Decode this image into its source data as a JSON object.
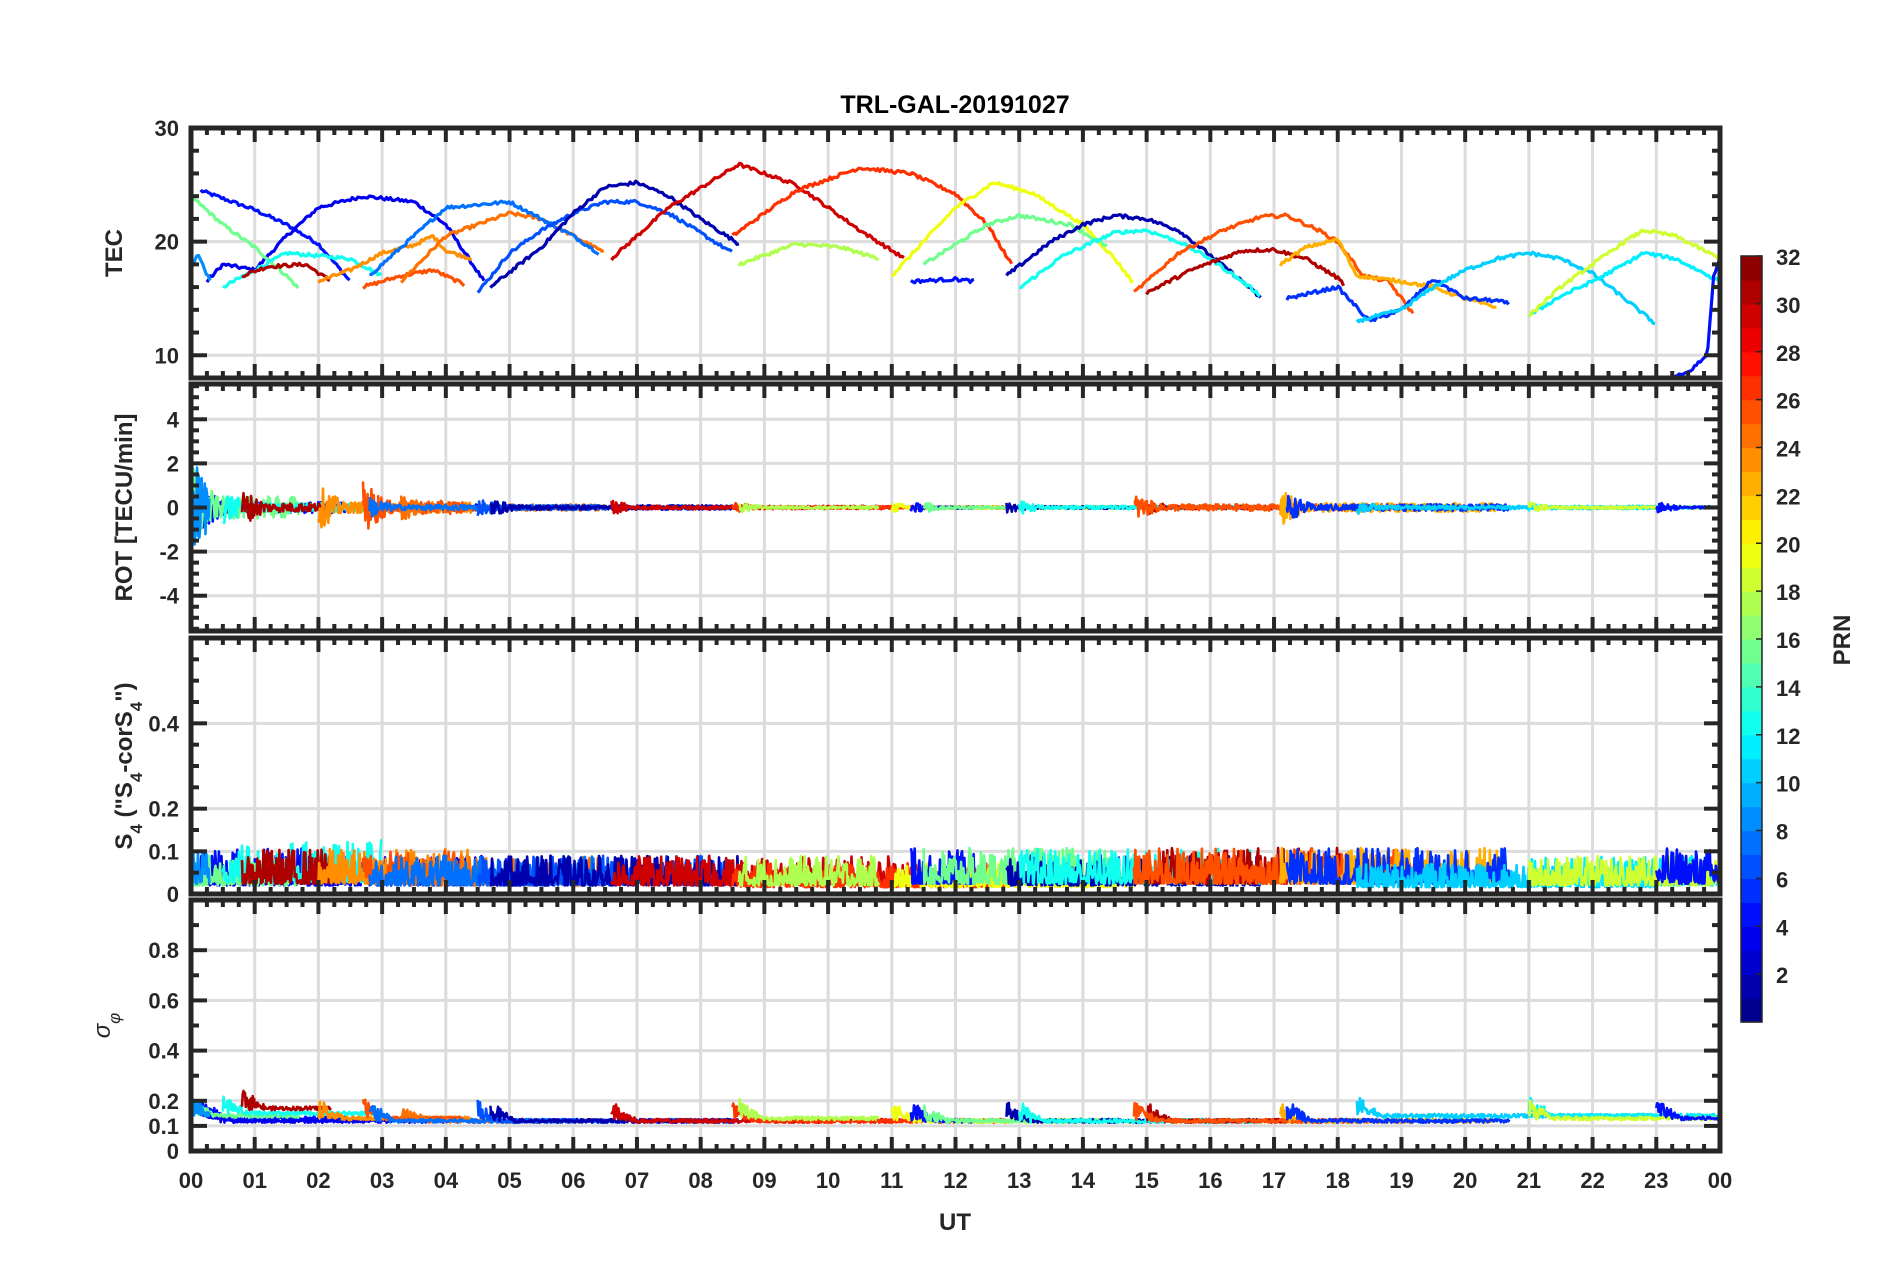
{
  "chart_data": {
    "type": "line",
    "title": "TRL-GAL-20191027",
    "xlabel": "UT",
    "xlim": [
      0,
      24
    ],
    "x_ticks": [
      0,
      1,
      2,
      3,
      4,
      5,
      6,
      7,
      8,
      9,
      10,
      11,
      12,
      13,
      14,
      15,
      16,
      17,
      18,
      19,
      20,
      21,
      22,
      23,
      24
    ],
    "x_tick_labels": [
      "00",
      "01",
      "02",
      "03",
      "04",
      "05",
      "06",
      "07",
      "08",
      "09",
      "10",
      "11",
      "12",
      "13",
      "14",
      "15",
      "16",
      "17",
      "18",
      "19",
      "20",
      "21",
      "22",
      "23",
      "00"
    ],
    "grid": true,
    "colormap": "jet",
    "colorbar": {
      "label": "PRN",
      "range": [
        1,
        32
      ],
      "levels": 32,
      "ticks": [
        2,
        4,
        6,
        8,
        10,
        12,
        14,
        16,
        18,
        20,
        22,
        24,
        26,
        28,
        30,
        32
      ],
      "placement": "right"
    },
    "panels": [
      {
        "id": "tec",
        "ylabel": "TEC",
        "ylim": [
          8,
          30
        ],
        "y_ticks": [
          10,
          20,
          30
        ],
        "y_tick_labels": [
          "10",
          "20",
          "30"
        ]
      },
      {
        "id": "rot",
        "ylabel": "ROT [TECU/min]",
        "ylim": [
          -5.6,
          5.6
        ],
        "y_ticks": [
          -4,
          -2,
          0,
          2,
          4
        ],
        "y_tick_labels": [
          "-4",
          "-2",
          "0",
          "2",
          "4"
        ]
      },
      {
        "id": "s4",
        "ylabel_parts": [
          "S",
          "4",
          " (\"S",
          "4",
          "-corS",
          "4",
          "\")"
        ],
        "ylim": [
          0,
          0.6
        ],
        "y_ticks": [
          0,
          0.1,
          0.2,
          0.4
        ],
        "y_tick_labels": [
          "0",
          "0.1",
          "0.2",
          "0.4"
        ]
      },
      {
        "id": "sigma",
        "ylabel_parts": [
          "σ",
          "φ"
        ],
        "ylim": [
          0,
          1
        ],
        "y_ticks": [
          0,
          0.1,
          0.2,
          0.4,
          0.6,
          0.8
        ],
        "y_tick_labels": [
          "0",
          "0.1",
          "0.2",
          "0.4",
          "0.6",
          "0.8"
        ]
      }
    ],
    "series": [
      {
        "prn": 5,
        "tec": [
          [
            0.15,
            24.5
          ],
          [
            0.5,
            23.8
          ],
          [
            1.0,
            22.8
          ],
          [
            1.5,
            21.5
          ],
          [
            2.0,
            19.8
          ],
          [
            2.5,
            16.5
          ]
        ],
        "rot_amp": 0.25,
        "s4_level": 0.06,
        "sigma_level": 0.13
      },
      {
        "prn": 4,
        "tec": [
          [
            0.25,
            16.5
          ],
          [
            0.5,
            18
          ],
          [
            1.0,
            17.5
          ],
          [
            1.5,
            20.5
          ],
          [
            2.0,
            23
          ],
          [
            2.7,
            24
          ],
          [
            3.5,
            23.5
          ],
          [
            4.0,
            21.5
          ],
          [
            4.6,
            16.5
          ]
        ],
        "rot_amp": 0.15,
        "s4_level": 0.05,
        "sigma_level": 0.12
      },
      {
        "prn": 16,
        "tec": [
          [
            0.0,
            24
          ],
          [
            0.5,
            21.5
          ],
          [
            1.0,
            19.5
          ],
          [
            1.5,
            17
          ],
          [
            1.7,
            15.8
          ]
        ],
        "rot_amp": 0.5,
        "s4_level": 0.05,
        "sigma_level": 0.14
      },
      {
        "prn": 9,
        "tec": [
          [
            0.0,
            17.5
          ],
          [
            0.1,
            19
          ],
          [
            0.3,
            16.5
          ]
        ],
        "rot_amp": 0.6,
        "s4_level": 0.06,
        "sigma_level": 0.14
      },
      {
        "prn": 13,
        "tec": [
          [
            0.5,
            16
          ],
          [
            1.0,
            17.5
          ],
          [
            1.5,
            19
          ],
          [
            2.5,
            18.5
          ],
          [
            3.0,
            17
          ]
        ],
        "rot_amp": 0.2,
        "s4_level": 0.07,
        "sigma_level": 0.15
      },
      {
        "prn": 31,
        "tec": [
          [
            0.8,
            17
          ],
          [
            1.2,
            17.8
          ],
          [
            1.8,
            18
          ],
          [
            2.2,
            16.5
          ]
        ],
        "rot_amp": 0.2,
        "s4_level": 0.06,
        "sigma_level": 0.17
      },
      {
        "prn": 24,
        "tec": [
          [
            2.0,
            16.5
          ],
          [
            2.5,
            17.5
          ],
          [
            3.0,
            19
          ],
          [
            3.5,
            19.7
          ],
          [
            3.8,
            20.5
          ],
          [
            4.0,
            19.2
          ],
          [
            4.4,
            18.5
          ]
        ],
        "rot_amp": 0.25,
        "s4_level": 0.06,
        "sigma_level": 0.13
      },
      {
        "prn": 26,
        "tec": [
          [
            2.7,
            16
          ],
          [
            3.3,
            17
          ],
          [
            3.8,
            17.5
          ],
          [
            4.3,
            16.2
          ]
        ],
        "rot_amp": 0.3,
        "s4_level": 0.06,
        "sigma_level": 0.13
      },
      {
        "prn": 25,
        "tec": [
          [
            3.3,
            16.5
          ],
          [
            4.0,
            20.5
          ],
          [
            4.5,
            21.5
          ],
          [
            5.0,
            22.5
          ],
          [
            5.5,
            22
          ],
          [
            6.0,
            20.5
          ],
          [
            6.5,
            19
          ]
        ],
        "rot_amp": 0.15,
        "s4_level": 0.05,
        "sigma_level": 0.12
      },
      {
        "prn": 8,
        "tec": [
          [
            2.8,
            17
          ],
          [
            3.5,
            20.5
          ],
          [
            4.0,
            23
          ],
          [
            5.0,
            23.5
          ],
          [
            5.5,
            22
          ],
          [
            6.0,
            20.5
          ],
          [
            6.4,
            19
          ]
        ],
        "rot_amp": 0.12,
        "s4_level": 0.05,
        "sigma_level": 0.12
      },
      {
        "prn": 7,
        "tec": [
          [
            4.5,
            15.5
          ],
          [
            5.0,
            19
          ],
          [
            5.5,
            21
          ],
          [
            6.0,
            22.5
          ],
          [
            6.5,
            23.5
          ],
          [
            7.0,
            23.5
          ],
          [
            7.5,
            22.5
          ],
          [
            8.5,
            19
          ]
        ],
        "rot_amp": 0.1,
        "s4_level": 0.05,
        "sigma_level": 0.12
      },
      {
        "prn": 2,
        "tec": [
          [
            4.7,
            16
          ],
          [
            5.5,
            19.5
          ],
          [
            6.0,
            22.5
          ],
          [
            6.5,
            24.8
          ],
          [
            7.0,
            25.2
          ],
          [
            7.5,
            24
          ],
          [
            8.0,
            22
          ],
          [
            8.6,
            19.8
          ]
        ],
        "rot_amp": 0.1,
        "s4_level": 0.05,
        "sigma_level": 0.12
      },
      {
        "prn": 30,
        "tec": [
          [
            6.6,
            18.5
          ],
          [
            7.5,
            23
          ],
          [
            8.6,
            26.8
          ],
          [
            9.5,
            25
          ],
          [
            10.5,
            21
          ],
          [
            11.2,
            18.5
          ]
        ],
        "rot_amp": 0.08,
        "s4_level": 0.05,
        "sigma_level": 0.12
      },
      {
        "prn": 27,
        "tec": [
          [
            8.5,
            20.5
          ],
          [
            9.5,
            24.5
          ],
          [
            10.5,
            26.5
          ],
          [
            11.3,
            26
          ],
          [
            12.0,
            24.2
          ],
          [
            12.5,
            21.5
          ],
          [
            12.9,
            17.8
          ]
        ],
        "rot_amp": 0.06,
        "s4_level": 0.04,
        "sigma_level": 0.12
      },
      {
        "prn": 18,
        "tec": [
          [
            8.6,
            18
          ],
          [
            9.5,
            19.8
          ],
          [
            10.2,
            19.5
          ],
          [
            10.8,
            18.5
          ]
        ],
        "rot_amp": 0.06,
        "s4_level": 0.05,
        "sigma_level": 0.13
      },
      {
        "prn": 20,
        "tec": [
          [
            11.0,
            17
          ],
          [
            11.5,
            20
          ],
          [
            12.0,
            23
          ],
          [
            12.6,
            25.2
          ],
          [
            13.2,
            24.3
          ],
          [
            14.0,
            21.5
          ],
          [
            14.5,
            18.5
          ],
          [
            14.8,
            16.3
          ]
        ],
        "rot_amp": 0.06,
        "s4_level": 0.04,
        "sigma_level": 0.12
      },
      {
        "prn": 5,
        "tec": [
          [
            11.3,
            16.5
          ],
          [
            12.0,
            16.7
          ],
          [
            12.3,
            16.5
          ]
        ],
        "rot_amp": 0.06,
        "s4_level": 0.06,
        "sigma_level": 0.12
      },
      {
        "prn": 16,
        "tec": [
          [
            11.5,
            18
          ],
          [
            12.5,
            21.5
          ],
          [
            13.0,
            22.3
          ],
          [
            13.8,
            21.5
          ],
          [
            14.4,
            19.5
          ]
        ],
        "rot_amp": 0.06,
        "s4_level": 0.06,
        "sigma_level": 0.12
      },
      {
        "prn": 2,
        "tec": [
          [
            12.8,
            17
          ],
          [
            13.5,
            20
          ],
          [
            14.0,
            21.5
          ],
          [
            14.5,
            22.3
          ],
          [
            15.0,
            22
          ],
          [
            15.5,
            21
          ],
          [
            16.0,
            18.8
          ],
          [
            16.5,
            16.5
          ],
          [
            16.8,
            15
          ]
        ],
        "rot_amp": 0.06,
        "s4_level": 0.05,
        "sigma_level": 0.12
      },
      {
        "prn": 13,
        "tec": [
          [
            13.0,
            15.9
          ],
          [
            13.7,
            18.8
          ],
          [
            14.5,
            20.8
          ],
          [
            15.0,
            21
          ],
          [
            15.5,
            20
          ],
          [
            16.0,
            18.5
          ],
          [
            16.5,
            16.5
          ],
          [
            16.8,
            15.2
          ]
        ],
        "rot_amp": 0.08,
        "s4_level": 0.06,
        "sigma_level": 0.12
      },
      {
        "prn": 31,
        "tec": [
          [
            15.0,
            15.5
          ],
          [
            15.7,
            17.5
          ],
          [
            16.5,
            19.2
          ],
          [
            17.0,
            19.3
          ],
          [
            17.5,
            18.5
          ],
          [
            18.0,
            16.8
          ],
          [
            18.1,
            16.2
          ]
        ],
        "rot_amp": 0.08,
        "s4_level": 0.06,
        "sigma_level": 0.12
      },
      {
        "prn": 26,
        "tec": [
          [
            14.8,
            15.5
          ],
          [
            15.5,
            19
          ],
          [
            16.2,
            21
          ],
          [
            16.8,
            22.2
          ],
          [
            17.2,
            22.3
          ],
          [
            17.7,
            21
          ],
          [
            18.0,
            20
          ],
          [
            18.4,
            17
          ],
          [
            18.8,
            16.5
          ],
          [
            19.2,
            13.5
          ]
        ],
        "rot_amp": 0.15,
        "s4_level": 0.06,
        "sigma_level": 0.12
      },
      {
        "prn": 23,
        "tec": [
          [
            17.1,
            18
          ],
          [
            17.5,
            19.5
          ],
          [
            18.0,
            20.2
          ],
          [
            18.3,
            17
          ],
          [
            19.0,
            16.5
          ],
          [
            19.5,
            16
          ],
          [
            20.0,
            15
          ],
          [
            20.5,
            14.2
          ]
        ],
        "rot_amp": 0.2,
        "s4_level": 0.06,
        "sigma_level": 0.12
      },
      {
        "prn": 6,
        "tec": [
          [
            17.2,
            15
          ],
          [
            18.0,
            16
          ],
          [
            18.5,
            13
          ],
          [
            19.0,
            14
          ],
          [
            19.5,
            16.7
          ],
          [
            20.0,
            15
          ],
          [
            20.5,
            14.8
          ],
          [
            20.7,
            14.5
          ]
        ],
        "rot_amp": 0.15,
        "s4_level": 0.06,
        "sigma_level": 0.12
      },
      {
        "prn": 11,
        "tec": [
          [
            18.3,
            13
          ],
          [
            19.0,
            14
          ],
          [
            19.5,
            16
          ],
          [
            20.0,
            17.5
          ],
          [
            20.5,
            18.5
          ],
          [
            21.0,
            19
          ],
          [
            21.5,
            18.5
          ],
          [
            22.0,
            17.2
          ],
          [
            22.5,
            15
          ],
          [
            23.0,
            12.7
          ]
        ],
        "rot_amp": 0.08,
        "s4_level": 0.04,
        "sigma_level": 0.14
      },
      {
        "prn": 12,
        "tec": [
          [
            21.0,
            13.5
          ],
          [
            21.5,
            15.2
          ],
          [
            22.0,
            16.5
          ],
          [
            22.5,
            18
          ],
          [
            22.8,
            19
          ],
          [
            23.3,
            18.5
          ],
          [
            24.0,
            16.5
          ]
        ],
        "rot_amp": 0.06,
        "s4_level": 0.05,
        "sigma_level": 0.14
      },
      {
        "prn": 19,
        "tec": [
          [
            21.0,
            13.5
          ],
          [
            21.5,
            16
          ],
          [
            22.0,
            18
          ],
          [
            22.5,
            20
          ],
          [
            22.8,
            21
          ],
          [
            23.3,
            20.5
          ],
          [
            24.0,
            18.5
          ]
        ],
        "rot_amp": 0.06,
        "s4_level": 0.05,
        "sigma_level": 0.13
      },
      {
        "prn": 5,
        "tec": [
          [
            23.0,
            7.5
          ],
          [
            23.5,
            8.5
          ],
          [
            23.8,
            10
          ],
          [
            23.9,
            17
          ],
          [
            24.0,
            18.5
          ]
        ],
        "rot_amp": 0.06,
        "s4_level": 0.06,
        "sigma_level": 0.13
      }
    ]
  }
}
